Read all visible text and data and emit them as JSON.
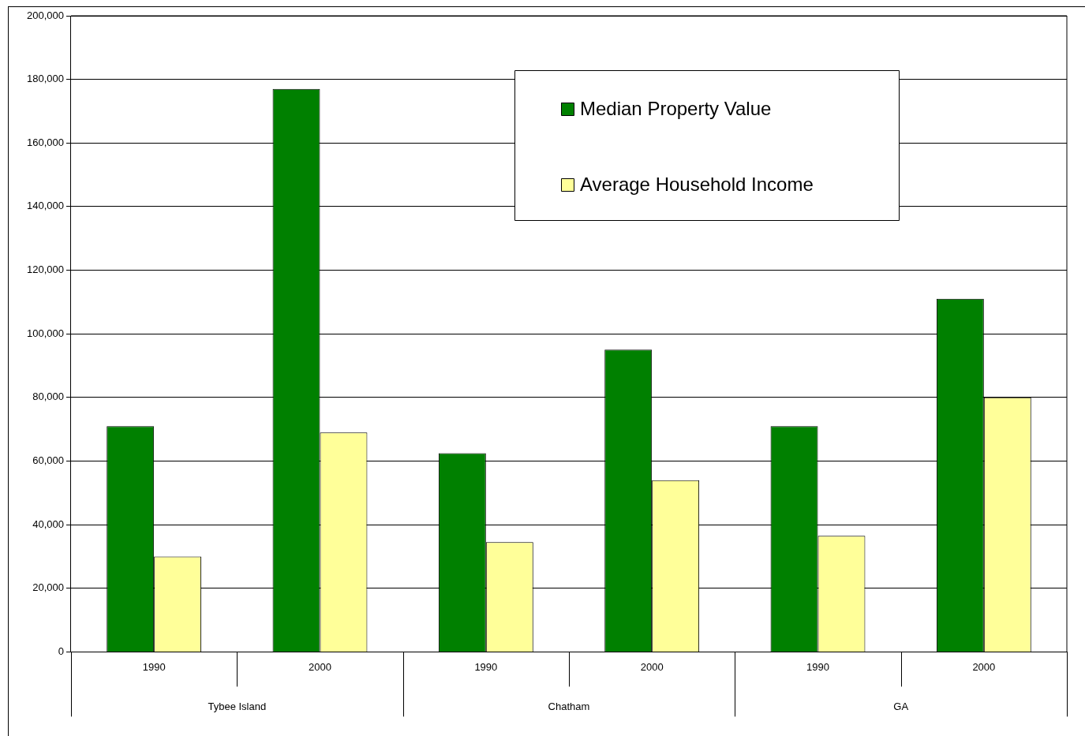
{
  "chart_data": {
    "type": "bar",
    "categories": [
      "1990",
      "2000",
      "1990",
      "2000",
      "1990",
      "2000"
    ],
    "series": [
      {
        "name": "Median Property Value",
        "color": "#008000",
        "values": [
          71000,
          177000,
          62500,
          95000,
          71000,
          111000
        ]
      },
      {
        "name": "Average Household Income",
        "color": "#ffff99",
        "values": [
          30000,
          69000,
          34500,
          54000,
          36500,
          80000
        ]
      }
    ],
    "annotations": [
      "Tybee Island",
      "Chatham",
      "GA"
    ],
    "ylim": [
      0,
      200000
    ],
    "yticks": [
      0,
      {
        "value": 20000,
        "label": "20,000"
      },
      {
        "value": 40000,
        "label": "40,000"
      },
      {
        "value": 60000,
        "label": "60,000"
      },
      {
        "value": 80000,
        "label": "80,000"
      },
      {
        "value": 100000,
        "label": "100,000"
      },
      {
        "value": 120000,
        "label": "120,000"
      },
      {
        "value": 140000,
        "label": "140,000"
      },
      {
        "value": 160000,
        "label": "160,000"
      },
      {
        "value": 180000,
        "label": "180,000"
      },
      {
        "value": 200000,
        "label": "200,000"
      }
    ],
    "grid": "y",
    "legend": "top right"
  }
}
